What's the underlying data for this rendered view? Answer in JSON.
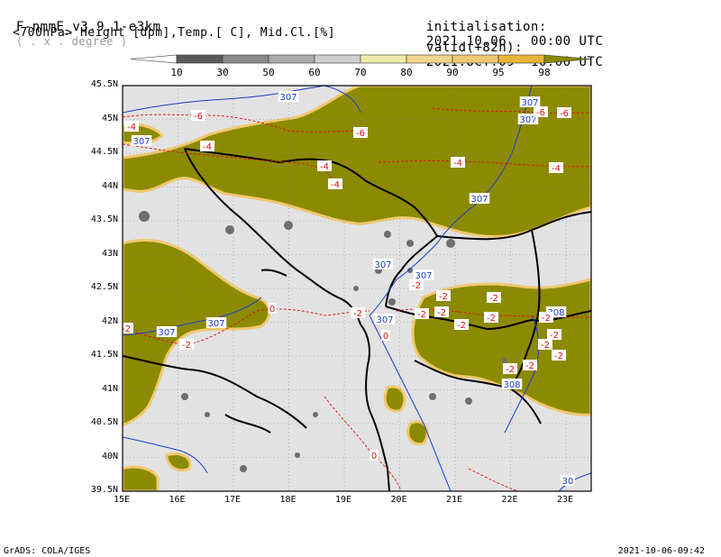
{
  "header": {
    "model": "F-nmmE_v3.9.1-e3km",
    "grid": "( . x . degree )",
    "fields": "<700hPa> Height [dpm],Temp.[ C], Mid.Cl.[%]",
    "init_label": "initialisation:",
    "init_value": "2021.10.06.  00:00 UTC",
    "valid_label": "valid(+82h):",
    "valid_value": "2021.OCT.09  10:00 UTC"
  },
  "colorbar": {
    "labels": [
      "10",
      "30",
      "50",
      "60",
      "70",
      "80",
      "90",
      "95",
      "98"
    ],
    "colors": [
      "#ffffff",
      "#5a5a5a",
      "#8a8a8a",
      "#ababab",
      "#cfcfcf",
      "#eeeaa8",
      "#f2d68c",
      "#f0c870",
      "#e8b43a",
      "#8c8a00"
    ]
  },
  "map": {
    "lat_labels": [
      "45.5N",
      "45N",
      "44.5N",
      "44N",
      "43.5N",
      "43N",
      "42.5N",
      "42N",
      "41.5N",
      "41N",
      "40.5N",
      "40N",
      "39.5N"
    ],
    "lon_labels": [
      "15E",
      "16E",
      "17E",
      "18E",
      "19E",
      "20E",
      "21E",
      "22E",
      "23E"
    ],
    "height_labels": [
      "307",
      "307",
      "307",
      "307",
      "307",
      "307",
      "307",
      "307",
      "307",
      "307",
      "308",
      "308",
      "30"
    ],
    "temp_labels": [
      "-6",
      "-6",
      "-6",
      "-6",
      "-4",
      "-4",
      "-4",
      "-4",
      "-4",
      "-4",
      "-2",
      "-2",
      "-2",
      "-2",
      "-2",
      "-2",
      "-2",
      "-2",
      "-2",
      "-2",
      "-2",
      "-2",
      "-2",
      "-2",
      "-2",
      "-2",
      "0",
      "0",
      "0"
    ],
    "colors": {
      "cloud_high": "#8c8a00",
      "land_gray": "#e2e2e2",
      "height_contour": "#1e3cc8",
      "temp_contour": "#e01010",
      "border": "#000000"
    }
  },
  "footer": {
    "left": "GrADS: COLA/IGES",
    "right": "2021-10-06-09:42"
  }
}
